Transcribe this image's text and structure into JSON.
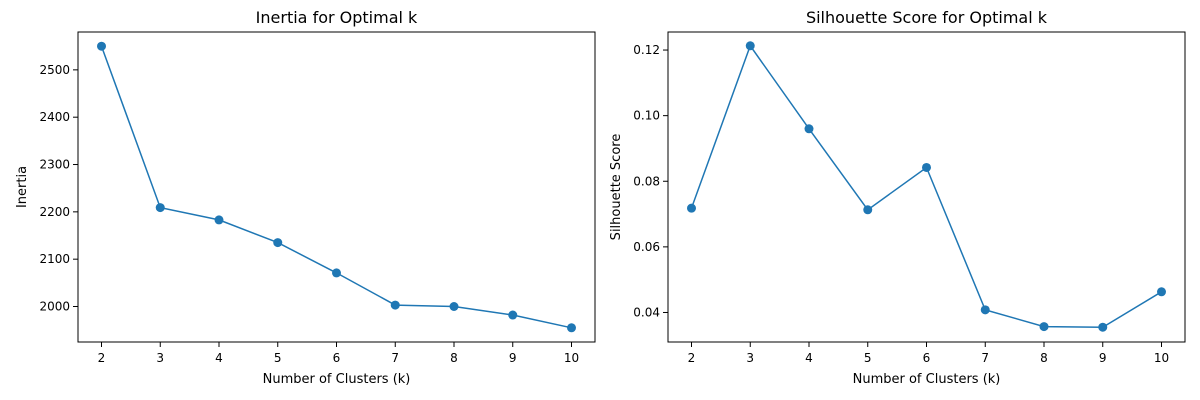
{
  "chart_data": [
    {
      "type": "line",
      "title": "Inertia for Optimal k",
      "xlabel": "Number of Clusters (k)",
      "ylabel": "Inertia",
      "x": [
        2,
        3,
        4,
        5,
        6,
        7,
        8,
        9,
        10
      ],
      "x_ticks": [
        2,
        3,
        4,
        5,
        6,
        7,
        8,
        9,
        10
      ],
      "y_ticks": [
        2000,
        2100,
        2200,
        2300,
        2400,
        2500
      ],
      "xlim": [
        1.6,
        10.4
      ],
      "ylim": [
        1925,
        2580
      ],
      "grid": false,
      "marker": "circle",
      "series": [
        {
          "values": [
            2550,
            2209,
            2183,
            2135,
            2071,
            2003,
            2000,
            1982,
            1955
          ],
          "color": "#1f77b4"
        }
      ]
    },
    {
      "type": "line",
      "title": "Silhouette Score for Optimal k",
      "xlabel": "Number of Clusters (k)",
      "ylabel": "Silhouette Score",
      "x": [
        2,
        3,
        4,
        5,
        6,
        7,
        8,
        9,
        10
      ],
      "x_ticks": [
        2,
        3,
        4,
        5,
        6,
        7,
        8,
        9,
        10
      ],
      "y_ticks": [
        0.04,
        0.06,
        0.08,
        0.1,
        0.12
      ],
      "y_tick_labels": [
        "0.04",
        "0.06",
        "0.08",
        "0.10",
        "0.12"
      ],
      "xlim": [
        1.6,
        10.4
      ],
      "ylim": [
        0.031,
        0.1255
      ],
      "grid": false,
      "marker": "circle",
      "series": [
        {
          "values": [
            0.0718,
            0.1213,
            0.096,
            0.0713,
            0.0842,
            0.0408,
            0.0357,
            0.0355,
            0.0463
          ],
          "color": "#1f77b4"
        }
      ]
    }
  ]
}
